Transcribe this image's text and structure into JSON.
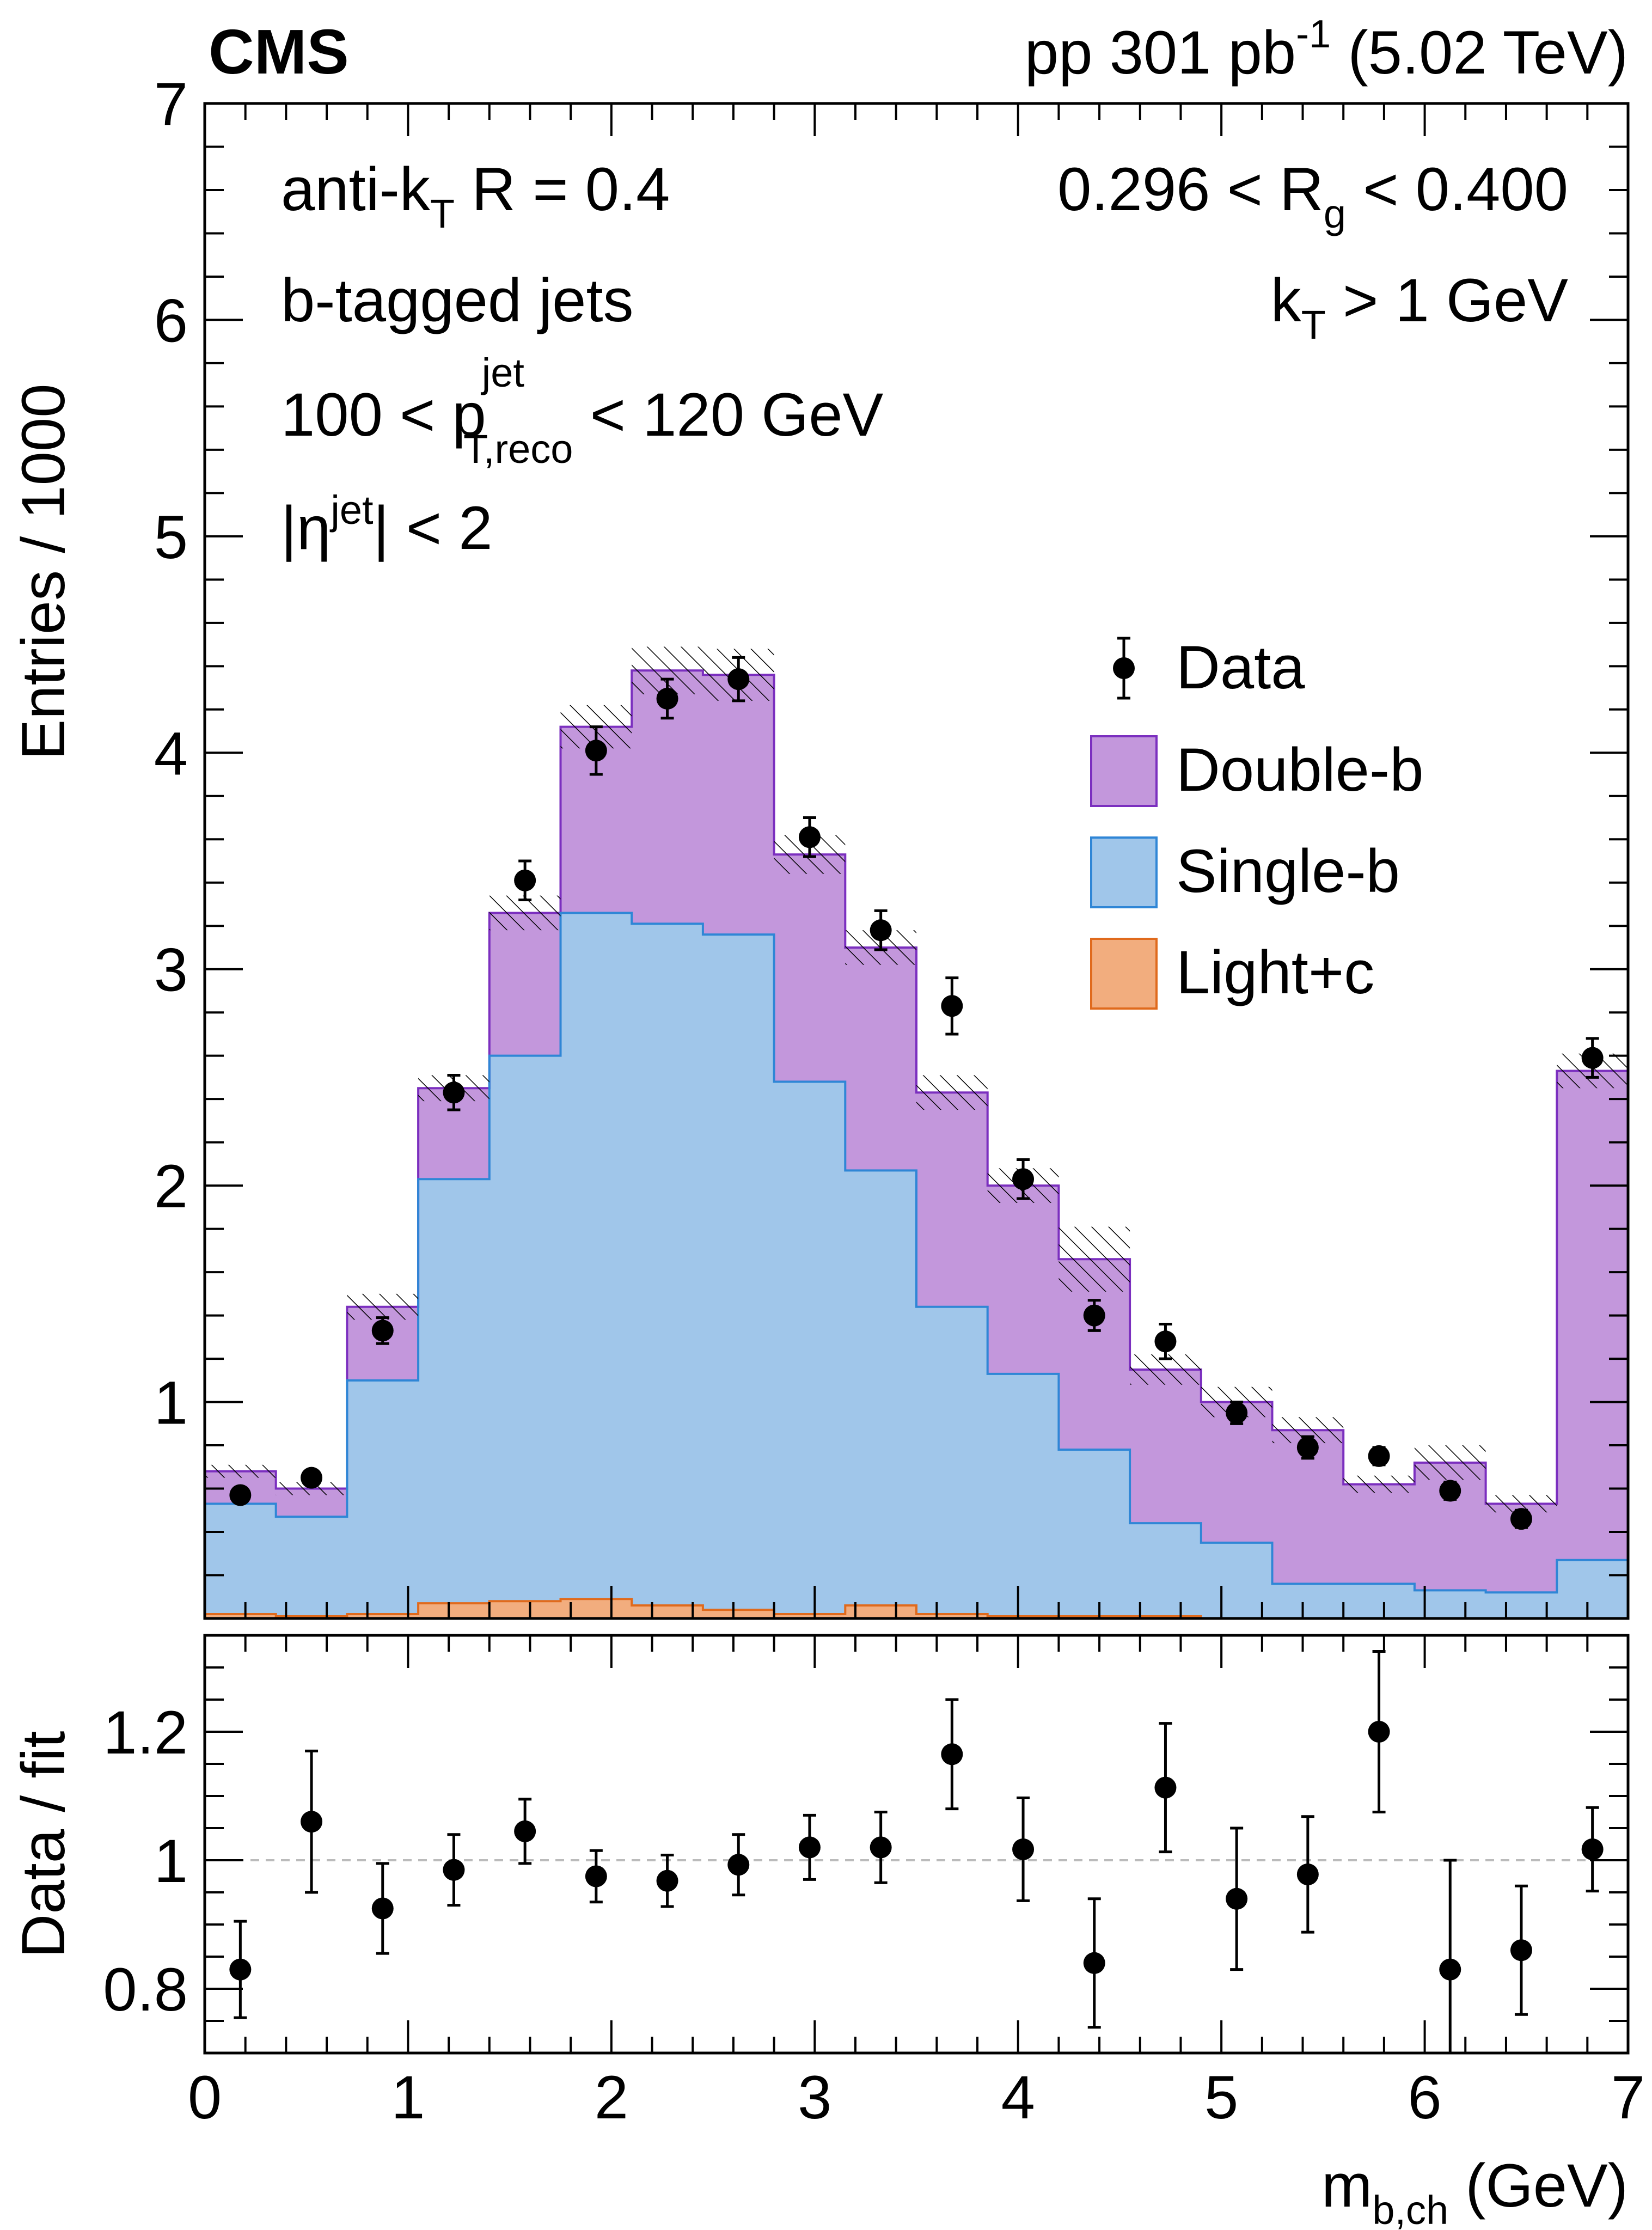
{
  "header": {
    "experiment": "CMS",
    "lumi_prefix": "pp 301",
    "lumi_unit": "pb",
    "lumi_exp": "-1",
    "energy": "(5.02 TeV)"
  },
  "labels": {
    "jet_algo": "anti-k",
    "jet_algo_sub": "T",
    "jet_radius": "R = 0.4",
    "rg_left": "0.296 < R",
    "rg_sub": "g",
    "rg_right": "< 0.400",
    "kt_k": "k",
    "kt_sub": "T",
    "kt_rest": "> 1 GeV",
    "tag": "b-tagged jets",
    "pt_left": "100 < p",
    "pt_sup": "jet",
    "pt_sub": "T,reco",
    "pt_right": "< 120 GeV",
    "eta_left": "|η",
    "eta_sup": "jet",
    "eta_right": "| < 2"
  },
  "colors": {
    "double_b_fill": "#c397dc",
    "double_b_line": "#7b2fbf",
    "single_b_fill": "#a0c6ea",
    "single_b_line": "#2f86d6",
    "light_c_fill": "#f2ad7e",
    "light_c_line": "#e06a1c",
    "points": "#000000"
  },
  "chart_data": [
    {
      "type": "bar",
      "stacked": true,
      "ylabel": "Entries / 1000",
      "ylim": [
        0,
        7
      ],
      "xlim": [
        0,
        7
      ],
      "yticks": [
        "1",
        "2",
        "3",
        "4",
        "5",
        "6",
        "7"
      ],
      "bin_edges": [
        0,
        0.35,
        0.7,
        1.05,
        1.4,
        1.75,
        2.1,
        2.45,
        2.8,
        3.15,
        3.5,
        3.85,
        4.2,
        4.55,
        4.9,
        5.25,
        5.6,
        5.95,
        6.3,
        6.65,
        7.0
      ],
      "series": [
        {
          "name": "Light+c",
          "values": [
            0.02,
            0.01,
            0.02,
            0.07,
            0.08,
            0.09,
            0.06,
            0.04,
            0.02,
            0.06,
            0.02,
            0.01,
            0.01,
            0.01,
            0.0,
            0.0,
            0.0,
            0.0,
            0.0,
            0.0
          ]
        },
        {
          "name": "Single-b",
          "values": [
            0.51,
            0.46,
            1.08,
            1.96,
            2.52,
            3.17,
            3.15,
            3.12,
            2.46,
            2.01,
            1.42,
            1.12,
            0.77,
            0.43,
            0.35,
            0.16,
            0.16,
            0.13,
            0.12,
            0.27
          ]
        },
        {
          "name": "Double-b",
          "values": [
            0.15,
            0.13,
            0.34,
            0.42,
            0.66,
            0.86,
            1.17,
            1.2,
            1.05,
            1.03,
            0.99,
            0.87,
            0.88,
            0.71,
            0.65,
            0.71,
            0.46,
            0.59,
            0.41,
            2.26
          ]
        }
      ],
      "fit_uncertainty": [
        0.03,
        0.03,
        0.06,
        0.06,
        0.08,
        0.1,
        0.11,
        0.12,
        0.09,
        0.08,
        0.08,
        0.08,
        0.15,
        0.07,
        0.07,
        0.06,
        0.04,
        0.08,
        0.04,
        0.08
      ],
      "data": {
        "name": "Data",
        "x": [
          0.175,
          0.525,
          0.875,
          1.225,
          1.575,
          1.925,
          2.275,
          2.625,
          2.975,
          3.325,
          3.675,
          4.025,
          4.375,
          4.725,
          5.075,
          5.425,
          5.775,
          6.125,
          6.475,
          6.825
        ],
        "y": [
          0.57,
          0.65,
          1.33,
          2.43,
          3.41,
          4.01,
          4.25,
          4.34,
          3.61,
          3.18,
          2.83,
          2.03,
          1.4,
          1.28,
          0.95,
          0.79,
          0.75,
          0.59,
          0.46,
          2.59
        ],
        "err": [
          0.03,
          0.03,
          0.06,
          0.08,
          0.09,
          0.11,
          0.09,
          0.1,
          0.09,
          0.09,
          0.13,
          0.09,
          0.07,
          0.08,
          0.05,
          0.05,
          0.04,
          0.04,
          0.04,
          0.09
        ]
      },
      "legend": [
        "Data",
        "Double-b",
        "Single-b",
        "Light+c"
      ],
      "legend_position": "top-right"
    },
    {
      "type": "scatter",
      "ylabel": "Data / fit",
      "xlabel_main": "m",
      "xlabel_sub": "b,ch",
      "xlabel_unit": " (GeV)",
      "ylim": [
        0.7,
        1.35
      ],
      "xlim": [
        0,
        7
      ],
      "yticks": [
        "0.8",
        "1",
        "1.2"
      ],
      "xticks": [
        "0",
        "1",
        "2",
        "3",
        "4",
        "5",
        "6",
        "7"
      ],
      "reference_line": 1.0,
      "x": [
        0.175,
        0.525,
        0.875,
        1.225,
        1.575,
        1.925,
        2.275,
        2.625,
        2.975,
        3.325,
        3.675,
        4.025,
        4.375,
        4.725,
        5.075,
        5.425,
        5.775,
        6.125,
        6.475,
        6.825
      ],
      "y": [
        0.83,
        1.06,
        0.925,
        0.985,
        1.045,
        0.975,
        0.968,
        0.993,
        1.02,
        1.02,
        1.165,
        1.017,
        0.84,
        1.113,
        0.94,
        0.978,
        1.2,
        0.83,
        0.86,
        1.017
      ],
      "err": [
        0.075,
        0.11,
        0.07,
        0.055,
        0.05,
        0.04,
        0.04,
        0.047,
        0.05,
        0.055,
        0.085,
        0.08,
        0.1,
        0.1,
        0.11,
        0.09,
        0.125,
        0.17,
        0.1,
        0.065
      ]
    }
  ]
}
